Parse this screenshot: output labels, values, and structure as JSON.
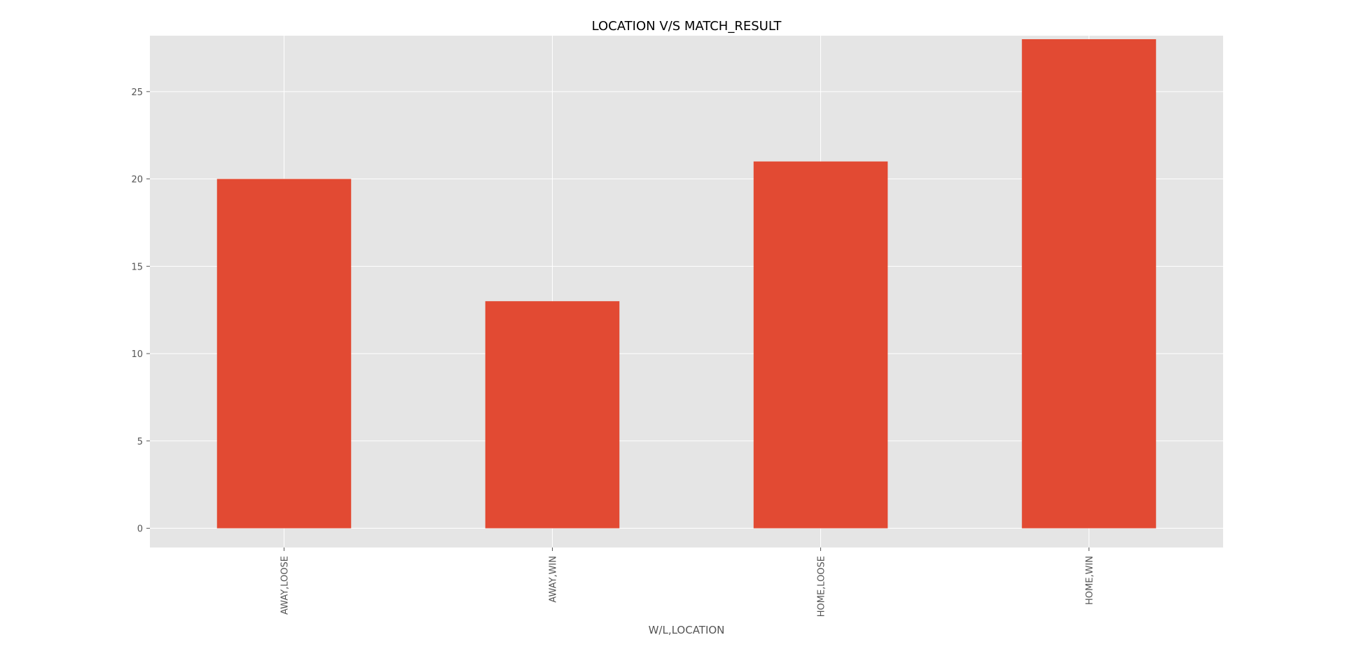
{
  "chart_data": {
    "type": "bar",
    "title": "LOCATION V/S MATCH_RESULT",
    "xlabel": "W/L,LOCATION",
    "ylabel": "",
    "categories": [
      "AWAY,LOOSE",
      "AWAY,WIN",
      "HOME,LOOSE",
      "HOME,WIN"
    ],
    "values": [
      20,
      13,
      21,
      28
    ],
    "ylim": [
      -1.1,
      28.2
    ],
    "yticks": [
      0,
      5,
      10,
      15,
      20,
      25
    ],
    "grid": true,
    "legend": "none",
    "colors": {
      "bar": "#E24A33",
      "plot_background": "#E5E5E5",
      "grid": "#FFFFFF",
      "tick_text": "#555555"
    }
  }
}
